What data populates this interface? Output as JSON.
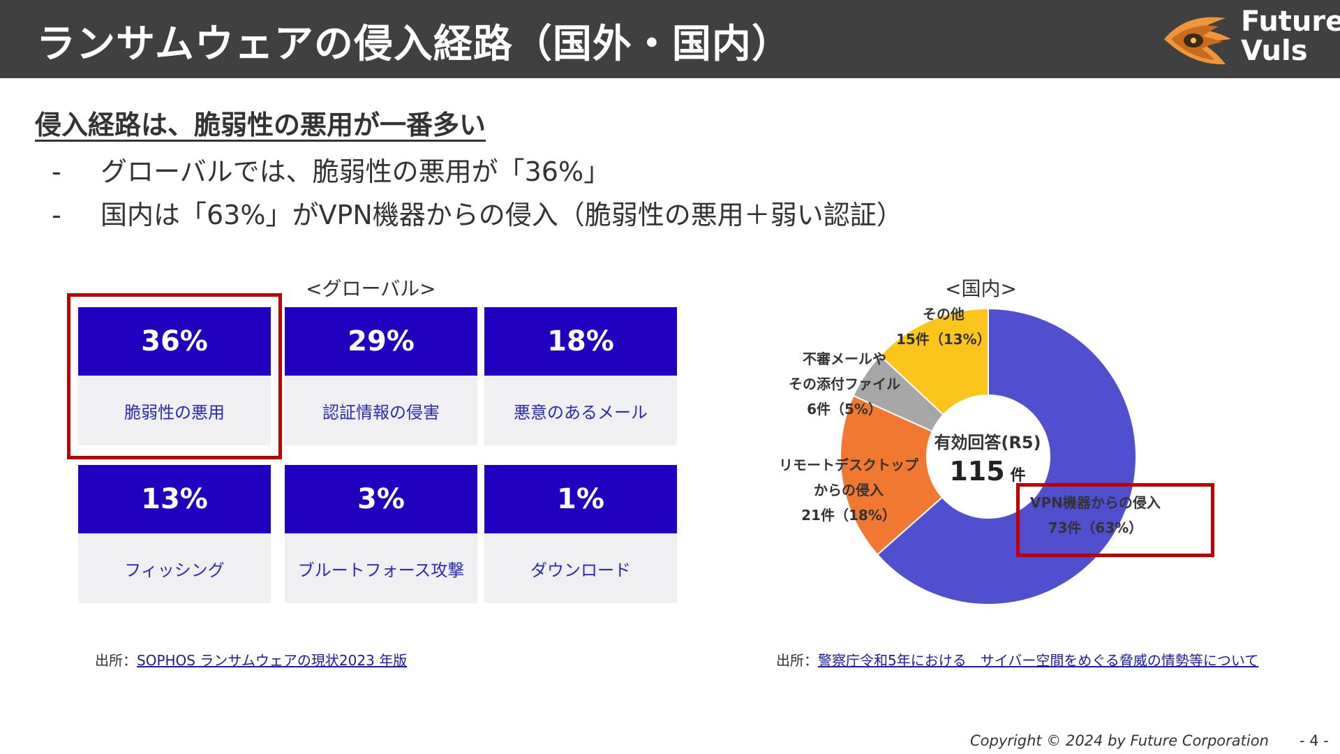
{
  "header": {
    "title": "ランサムウェアの侵入経路（国外・国内）",
    "logo_line1": "Future",
    "logo_line2": "Vuls",
    "logo_icon": "eye-logo-icon"
  },
  "headline": "侵入経路は、脆弱性の悪用が一番多い",
  "bullets": [
    {
      "dash": "-",
      "text": "グローバルでは、脆弱性の悪用が「36%」"
    },
    {
      "dash": "-",
      "text": "国内は「63%」がVPN機器からの侵入（脆弱性の悪用＋弱い認証）"
    }
  ],
  "global": {
    "label": "<グローバル>",
    "cards": [
      {
        "value": "36%",
        "label": "脆弱性の悪用"
      },
      {
        "value": "29%",
        "label": "認証情報の侵害"
      },
      {
        "value": "18%",
        "label": "悪意のあるメール"
      },
      {
        "value": "13%",
        "label": "フィッシング"
      },
      {
        "value": "3%",
        "label": "ブルートフォース攻撃"
      },
      {
        "value": "1%",
        "label": "ダウンロード"
      }
    ],
    "source_prefix": "出所：",
    "source_link": "SOPHOS ランサムウェアの現状2023 年版"
  },
  "domestic": {
    "label": "<国内>",
    "source_prefix": "出所：",
    "source_link": "警察庁令和5年における　サイバー空間をめぐる脅威の情勢等について"
  },
  "chart_data": {
    "type": "pie",
    "title": "有効回答(R5)",
    "total": "115",
    "total_unit": "件",
    "slices": [
      {
        "name_lines": [
          "VPN機器からの侵入"
        ],
        "count_label": "73件（63%）",
        "value": 73,
        "percent": 63,
        "color": "#4f4fd0"
      },
      {
        "name_lines": [
          "リモートデスクトップ",
          "からの侵入"
        ],
        "count_label": "21件（18%）",
        "value": 21,
        "percent": 18,
        "color": "#f07830"
      },
      {
        "name_lines": [
          "不審メールや",
          "その添付ファイル"
        ],
        "count_label": "6件（5%）",
        "value": 6,
        "percent": 5,
        "color": "#a6a6a6"
      },
      {
        "name_lines": [
          "その他"
        ],
        "count_label": "15件（13%）",
        "value": 15,
        "percent": 13,
        "color": "#fbc51c"
      }
    ]
  },
  "footer": {
    "copyright": "Copyright © 2024 by Future  Corporation",
    "page": "- 4 -"
  }
}
